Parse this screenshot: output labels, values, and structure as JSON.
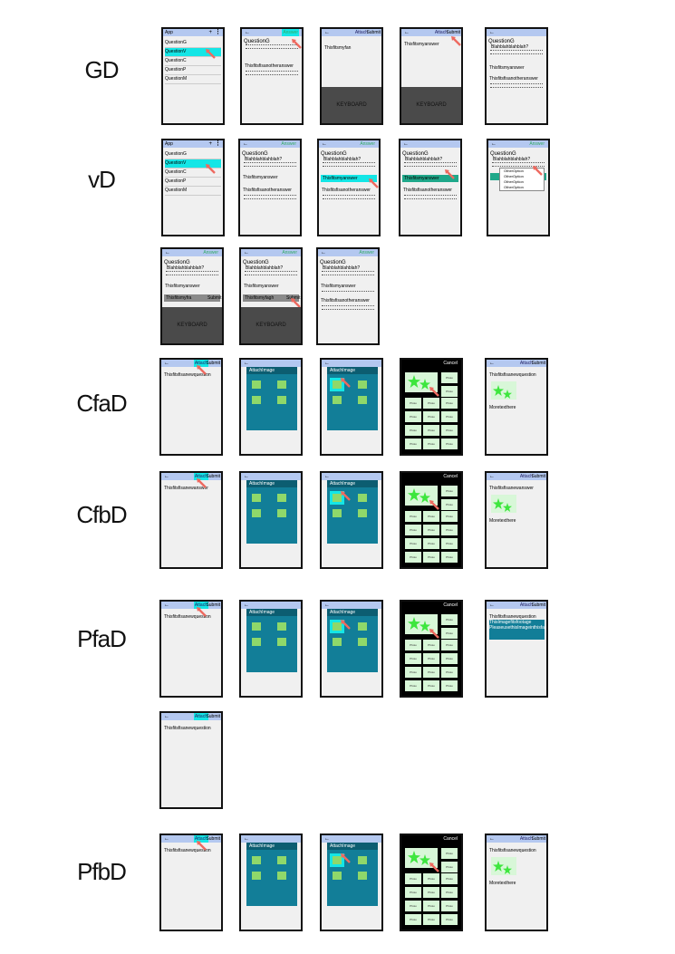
{
  "rows": [
    {
      "label": "GD"
    },
    {
      "label": "vD"
    },
    {
      "label": "CfaD"
    },
    {
      "label": "CfbD"
    },
    {
      "label": "PfaD"
    },
    {
      "label": "PfbD"
    }
  ],
  "ui": {
    "app_title": "App",
    "answer_label": "Answer",
    "attach_label": "Attach",
    "submit_label": "Submit",
    "keyboard_label": "KEYBOARD",
    "cancel_label": "Cancel",
    "attach_image_label": "AttachImage",
    "question_items": [
      "QuestionG",
      "QuestionV",
      "QuestionC",
      "QuestionP",
      "QuestionM"
    ],
    "question_title": "QuestionG",
    "question_blah": "Blahblahblahblah?",
    "answer_line": "Thisfitsmyanswer",
    "answer_typing": "Thisfitsmyfan",
    "answer_short": "Thisfitsmyfra",
    "answer_typing2": "Thisfitsmyfagh",
    "another_answer": "Thisfitsfisanotheranswer",
    "new_question": "Thisfitsfisanewquestion",
    "new_answer": "Thisfitsfisanewanswer",
    "more_text": "Moretexthere",
    "other_options": [
      "OtherOption",
      "OtherOption",
      "OtherOption",
      "OtherOption"
    ],
    "image_note": "ThisImagefitsfootage\nPleaseusethisImageinthisfashion"
  },
  "colors": {
    "bar": "#b4c8f0",
    "highlight": "#14e6e6",
    "panel": "#127e98",
    "arrow": "#ee6a60",
    "thumb": "#8fd86a",
    "star": "#3ee63e"
  }
}
